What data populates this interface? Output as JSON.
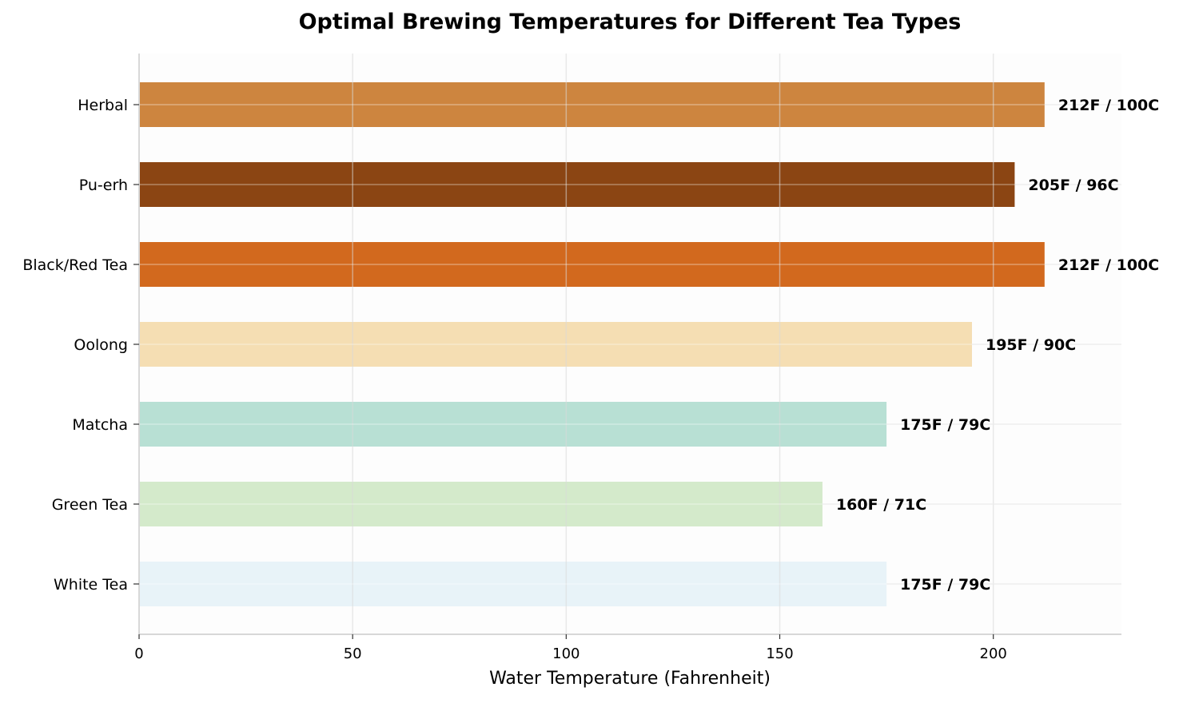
{
  "chart_data": {
    "type": "bar",
    "orientation": "horizontal",
    "title": "Optimal Brewing Temperatures for Different Tea Types",
    "xlabel": "Water Temperature (Fahrenheit)",
    "ylabel": "",
    "xlim": [
      0,
      230
    ],
    "xticks": [
      0,
      50,
      100,
      150,
      200
    ],
    "grid": true,
    "categories": [
      "White Tea",
      "Green Tea",
      "Matcha",
      "Oolong",
      "Black/Red Tea",
      "Pu-erh",
      "Herbal"
    ],
    "values": [
      175,
      160,
      175,
      195,
      212,
      205,
      212
    ],
    "data_labels": [
      "175F / 79C",
      "160F / 71C",
      "175F / 79C",
      "195F / 90C",
      "212F / 100C",
      "205F / 96C",
      "212F / 100C"
    ],
    "colors": [
      "#E8F3F8",
      "#D4EACB",
      "#B8E0D4",
      "#F5DEB3",
      "#D2691E",
      "#8B4513",
      "#CD853F"
    ]
  }
}
